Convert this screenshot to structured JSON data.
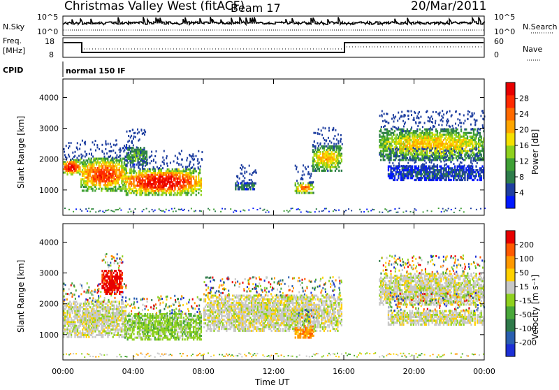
{
  "header": {
    "title": "Christmas Valley West (fitACF)",
    "beam": "Beam 17",
    "date": "20/Mar/2011"
  },
  "nsky": {
    "label": "N.Sky",
    "ticks": [
      "10^5",
      "10^0"
    ],
    "right_label": "N.Search",
    "right_ticks": [
      "10^5",
      "10^0"
    ]
  },
  "freq": {
    "label_line1": "Freq.",
    "label_line2": "[MHz]",
    "ticks": [
      "18",
      "8"
    ],
    "right_label": "Nave",
    "right_ticks": [
      "60",
      "0"
    ]
  },
  "cpid": {
    "label": "CPID",
    "value": "normal 150 IF"
  },
  "colors": {
    "power": [
      "#0018ff",
      "#1f3fa0",
      "#2e7d4a",
      "#3fa035",
      "#8fd11e",
      "#f5e000",
      "#ffa600",
      "#ff6a00",
      "#ff2a00",
      "#e80000"
    ],
    "velocity": [
      "#1c2fd6",
      "#2a5fb0",
      "#2f7a4a",
      "#49a83a",
      "#8fd11e",
      "#c8c8c8",
      "#ffd100",
      "#ff9900",
      "#ff5a00",
      "#e80000"
    ],
    "ground": "#c8c8c8"
  },
  "chart_data": [
    {
      "type": "heatmap",
      "panel": "power",
      "xlabel": "",
      "ylabel": "Slant Range [km]",
      "yticks": [
        "4000",
        "3000",
        "2000",
        "1000"
      ],
      "ylim": [
        180,
        4600
      ],
      "xlim": [
        0,
        24
      ],
      "colorbar": {
        "label": "Power [dB]",
        "ticks": [
          "28",
          "24",
          "20",
          "16",
          "12",
          "8",
          "4"
        ]
      },
      "regions": [
        {
          "t0": 0.0,
          "t1": 1.0,
          "r0": 1480,
          "r1": 2000,
          "level": 8
        },
        {
          "t0": 1.0,
          "t1": 3.6,
          "r0": 950,
          "r1": 2050,
          "level": 7
        },
        {
          "t0": 3.6,
          "t1": 4.8,
          "r0": 1800,
          "r1": 2400,
          "level": 3
        },
        {
          "t0": 3.5,
          "t1": 7.9,
          "r0": 820,
          "r1": 1700,
          "level": 8
        },
        {
          "t0": 9.8,
          "t1": 11.0,
          "r0": 1000,
          "r1": 1250,
          "level": 2
        },
        {
          "t0": 13.2,
          "t1": 14.3,
          "r0": 880,
          "r1": 1250,
          "level": 6
        },
        {
          "t0": 14.2,
          "t1": 15.9,
          "r0": 1600,
          "r1": 2450,
          "level": 5
        },
        {
          "t0": 18.0,
          "t1": 24.0,
          "r0": 1950,
          "r1": 3000,
          "level": 5
        },
        {
          "t0": 18.5,
          "t1": 24.0,
          "r0": 1300,
          "r1": 1800,
          "level": 1
        }
      ]
    },
    {
      "type": "heatmap",
      "panel": "velocity",
      "xlabel": "Time UT",
      "ylabel": "Slant Range [km]",
      "xticks": [
        "00:00",
        "04:00",
        "08:00",
        "12:00",
        "16:00",
        "20:00",
        "00:00"
      ],
      "yticks": [
        "4000",
        "3000",
        "2000",
        "1000"
      ],
      "ylim": [
        180,
        4600
      ],
      "xlim": [
        0,
        24
      ],
      "colorbar": {
        "label": "Velocity [m s⁻¹]",
        "ticks": [
          "200",
          "100",
          "50",
          "15",
          "-15",
          "-50",
          "-100",
          "-200"
        ]
      },
      "regions": [
        {
          "t0": 0.0,
          "t1": 3.6,
          "r0": 900,
          "r1": 2100,
          "level": 5
        },
        {
          "t0": 2.2,
          "t1": 3.4,
          "r0": 2300,
          "r1": 3100,
          "level": 9
        },
        {
          "t0": 3.5,
          "t1": 7.9,
          "r0": 820,
          "r1": 1700,
          "level": 4
        },
        {
          "t0": 8.0,
          "t1": 15.9,
          "r0": 1100,
          "r1": 2300,
          "level": 5
        },
        {
          "t0": 13.2,
          "t1": 14.3,
          "r0": 880,
          "r1": 1250,
          "level": 7
        },
        {
          "t0": 18.0,
          "t1": 24.0,
          "r0": 1950,
          "r1": 3000,
          "level": 5
        },
        {
          "t0": 18.5,
          "t1": 24.0,
          "r0": 1300,
          "r1": 1800,
          "level": 5
        }
      ]
    }
  ]
}
